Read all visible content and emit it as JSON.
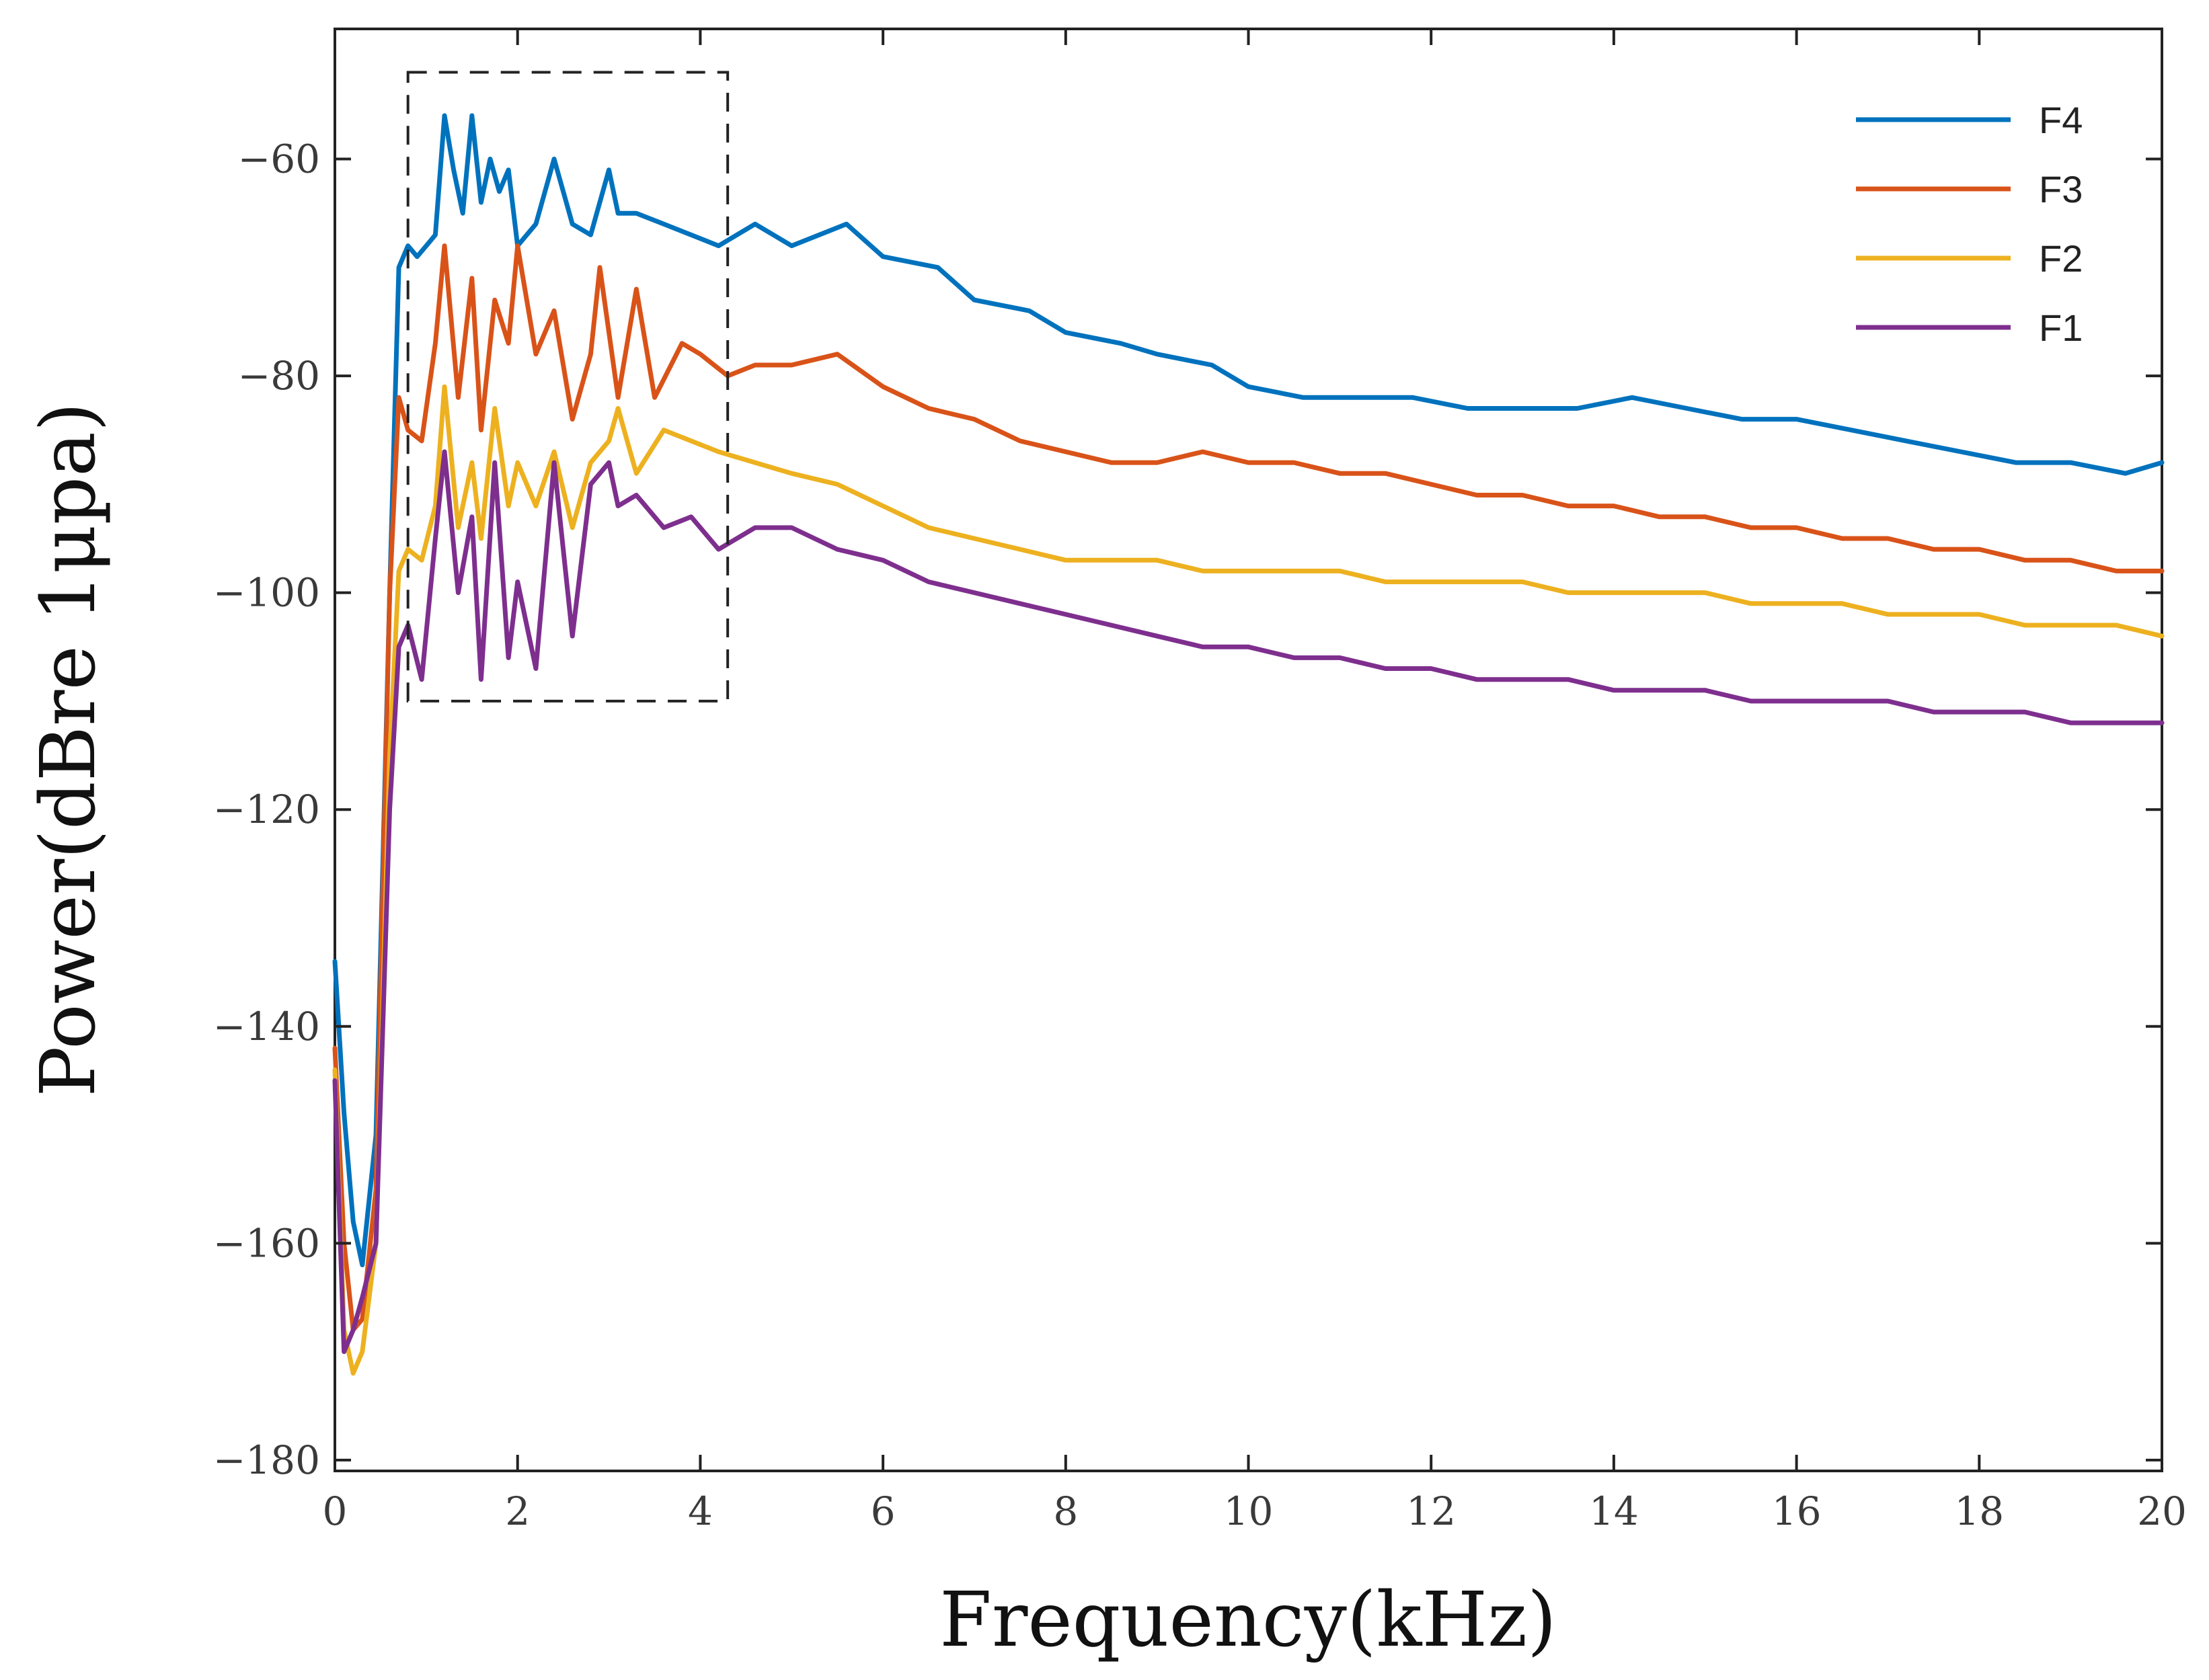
{
  "chart_data": {
    "type": "line",
    "xlabel": "Frequency(kHz)",
    "ylabel": "Power(dBre 1μpa)",
    "xlim": [
      0,
      20
    ],
    "ylim": [
      -181,
      -48
    ],
    "xticks": [
      0,
      2,
      4,
      6,
      8,
      10,
      12,
      14,
      16,
      18,
      20
    ],
    "yticks": [
      -180,
      -160,
      -140,
      -120,
      -100,
      -80,
      -60
    ],
    "xtick_labels": [
      "0",
      "2",
      "4",
      "6",
      "8",
      "10",
      "12",
      "14",
      "16",
      "18",
      "20"
    ],
    "ytick_labels": [
      "−180",
      "−160",
      "−140",
      "−120",
      "−100",
      "−80",
      "−60"
    ],
    "grid": false,
    "legend_position": "top-right",
    "annotation": {
      "type": "dashed-rectangle",
      "x_range": [
        0.8,
        4.3
      ],
      "y_range": [
        -110,
        -52
      ]
    },
    "series": [
      {
        "name": "F4",
        "color": "#0072BD",
        "x": [
          0,
          0.1,
          0.2,
          0.3,
          0.45,
          0.6,
          0.7,
          0.8,
          0.9,
          1.0,
          1.1,
          1.2,
          1.3,
          1.4,
          1.5,
          1.6,
          1.7,
          1.8,
          1.9,
          2.0,
          2.2,
          2.4,
          2.6,
          2.8,
          3.0,
          3.1,
          3.3,
          3.6,
          3.9,
          4.2,
          4.6,
          5.0,
          5.6,
          6.0,
          6.6,
          7.0,
          7.6,
          8.0,
          8.6,
          9.0,
          9.6,
          10.0,
          10.6,
          11.2,
          11.8,
          12.4,
          13.0,
          13.6,
          14.2,
          14.8,
          15.4,
          16.0,
          16.6,
          17.2,
          17.8,
          18.4,
          19.0,
          19.6,
          20.0
        ],
        "values": [
          -134,
          -148,
          -158,
          -162,
          -150,
          -100,
          -70,
          -68,
          -69,
          -68,
          -67,
          -56,
          -61,
          -65,
          -56,
          -64,
          -60,
          -63,
          -61,
          -68,
          -66,
          -60,
          -66,
          -67,
          -61,
          -65,
          -65,
          -66,
          -67,
          -68,
          -66,
          -68,
          -66,
          -69,
          -70,
          -73,
          -74,
          -76,
          -77,
          -78,
          -79,
          -81,
          -82,
          -82,
          -82,
          -83,
          -83,
          -83,
          -82,
          -83,
          -84,
          -84,
          -85,
          -86,
          -87,
          -88,
          -88,
          -89,
          -88
        ]
      },
      {
        "name": "F3",
        "color": "#D95319",
        "x": [
          0,
          0.1,
          0.2,
          0.3,
          0.45,
          0.6,
          0.7,
          0.8,
          0.95,
          1.1,
          1.2,
          1.35,
          1.5,
          1.6,
          1.75,
          1.9,
          2.0,
          2.2,
          2.4,
          2.6,
          2.8,
          2.9,
          3.1,
          3.3,
          3.5,
          3.8,
          4.0,
          4.3,
          4.6,
          5.0,
          5.5,
          6.0,
          6.5,
          7.0,
          7.5,
          8.0,
          8.5,
          9.0,
          9.5,
          10.0,
          10.5,
          11.0,
          11.5,
          12.0,
          12.5,
          13.0,
          13.5,
          14.0,
          14.5,
          15.0,
          15.5,
          16.0,
          16.5,
          17.0,
          17.5,
          18.0,
          18.5,
          19.0,
          19.5,
          20.0
        ],
        "values": [
          -142,
          -160,
          -168,
          -167,
          -155,
          -100,
          -82,
          -85,
          -86,
          -77,
          -68,
          -82,
          -71,
          -85,
          -73,
          -77,
          -68,
          -78,
          -74,
          -84,
          -78,
          -70,
          -82,
          -72,
          -82,
          -77,
          -78,
          -80,
          -79,
          -79,
          -78,
          -81,
          -83,
          -84,
          -86,
          -87,
          -88,
          -88,
          -87,
          -88,
          -88,
          -89,
          -89,
          -90,
          -91,
          -91,
          -92,
          -92,
          -93,
          -93,
          -94,
          -94,
          -95,
          -95,
          -96,
          -96,
          -97,
          -97,
          -98,
          -98
        ]
      },
      {
        "name": "F2",
        "color": "#EDB120",
        "x": [
          0,
          0.1,
          0.2,
          0.3,
          0.45,
          0.6,
          0.7,
          0.8,
          0.95,
          1.1,
          1.2,
          1.35,
          1.5,
          1.6,
          1.75,
          1.9,
          2.0,
          2.2,
          2.4,
          2.6,
          2.8,
          3.0,
          3.1,
          3.3,
          3.6,
          3.9,
          4.2,
          4.6,
          5.0,
          5.5,
          6.0,
          6.5,
          7.0,
          7.5,
          8.0,
          8.5,
          9.0,
          9.5,
          10.0,
          10.5,
          11.0,
          11.5,
          12.0,
          12.5,
          13.0,
          13.5,
          14.0,
          14.5,
          15.0,
          15.5,
          16.0,
          16.5,
          17.0,
          17.5,
          18.0,
          18.5,
          19.0,
          19.5,
          20.0
        ],
        "values": [
          -144,
          -168,
          -172,
          -170,
          -160,
          -115,
          -98,
          -96,
          -97,
          -92,
          -81,
          -94,
          -88,
          -95,
          -83,
          -92,
          -88,
          -92,
          -87,
          -94,
          -88,
          -86,
          -83,
          -89,
          -85,
          -86,
          -87,
          -88,
          -89,
          -90,
          -92,
          -94,
          -95,
          -96,
          -97,
          -97,
          -97,
          -98,
          -98,
          -98,
          -98,
          -99,
          -99,
          -99,
          -99,
          -100,
          -100,
          -100,
          -100,
          -101,
          -101,
          -101,
          -102,
          -102,
          -102,
          -103,
          -103,
          -103,
          -104
        ]
      },
      {
        "name": "F1",
        "color": "#7E2F8E",
        "x": [
          0,
          0.1,
          0.2,
          0.3,
          0.45,
          0.6,
          0.7,
          0.8,
          0.95,
          1.1,
          1.2,
          1.35,
          1.5,
          1.6,
          1.75,
          1.9,
          2.0,
          2.2,
          2.4,
          2.6,
          2.8,
          3.0,
          3.1,
          3.3,
          3.6,
          3.9,
          4.2,
          4.6,
          5.0,
          5.5,
          6.0,
          6.5,
          7.0,
          7.5,
          8.0,
          8.5,
          9.0,
          9.5,
          10.0,
          10.5,
          11.0,
          11.5,
          12.0,
          12.5,
          13.0,
          13.5,
          14.0,
          14.5,
          15.0,
          15.5,
          16.0,
          16.5,
          17.0,
          17.5,
          18.0,
          18.5,
          19.0,
          19.5,
          20.0
        ],
        "values": [
          -145,
          -170,
          -168,
          -165,
          -160,
          -120,
          -105,
          -103,
          -108,
          -95,
          -87,
          -100,
          -93,
          -108,
          -88,
          -106,
          -99,
          -107,
          -88,
          -104,
          -90,
          -88,
          -92,
          -91,
          -94,
          -93,
          -96,
          -94,
          -94,
          -96,
          -97,
          -99,
          -100,
          -101,
          -102,
          -103,
          -104,
          -105,
          -105,
          -106,
          -106,
          -107,
          -107,
          -108,
          -108,
          -108,
          -109,
          -109,
          -109,
          -110,
          -110,
          -110,
          -110,
          -111,
          -111,
          -111,
          -112,
          -112,
          -112
        ]
      }
    ]
  }
}
